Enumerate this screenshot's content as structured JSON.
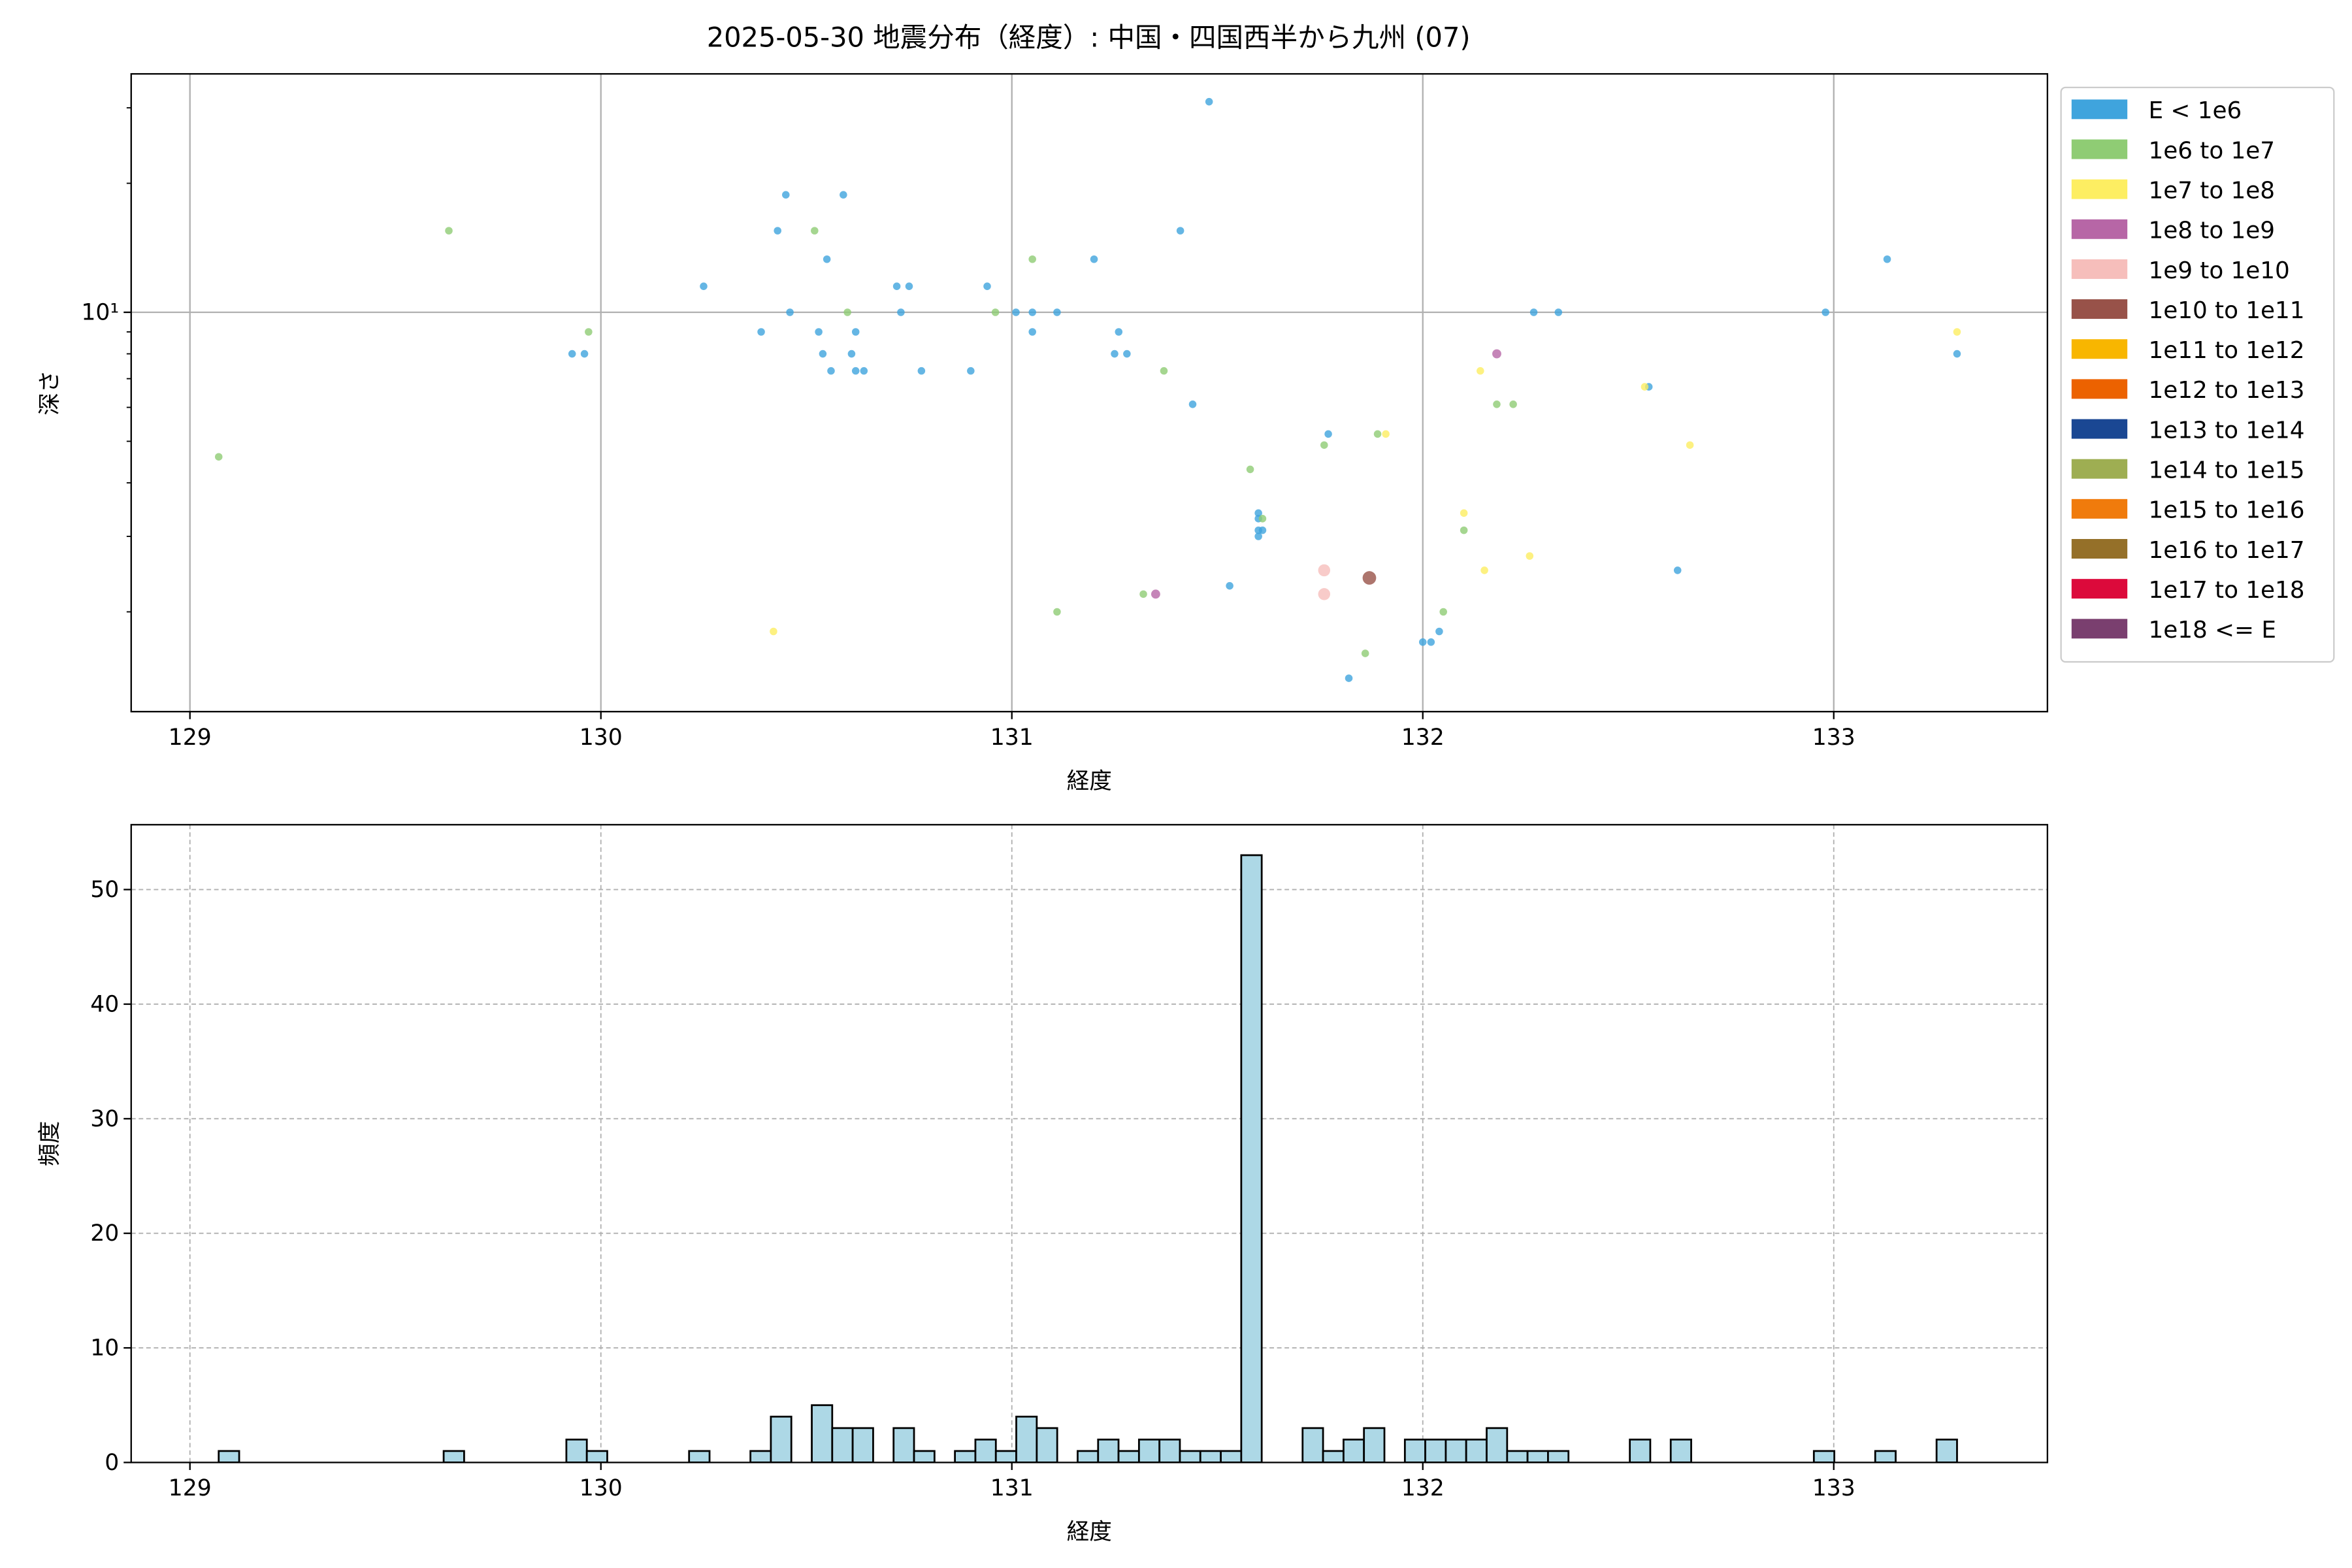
{
  "chart_data": [
    {
      "type": "scatter",
      "title": "2025-05-30 地震分布（経度）: 中国・四国西半から九州 (07)",
      "xlabel": "経度",
      "ylabel": "深さ",
      "xlim": [
        128.857,
        133.52
      ],
      "xticks": [
        129,
        130,
        131,
        132,
        133
      ],
      "ylim": [
        1.17,
        36
      ],
      "log_y": true,
      "yticks": [
        {
          "value": 10,
          "label": "10¹"
        }
      ],
      "yminorticks": [
        2,
        3,
        4,
        5,
        6,
        7,
        8,
        9,
        20,
        30
      ],
      "grid": true,
      "legend": "outside-right",
      "series": [
        {
          "name": "E < 1e6",
          "color": "#3fa4dd",
          "size": 2.5,
          "x": [
            131.48,
            130.45,
            130.59,
            130.43,
            131.41,
            130.55,
            131.2,
            133.13,
            130.25,
            130.72,
            130.75,
            130.94,
            130.46,
            130.73,
            131.01,
            131.05,
            131.11,
            132.27,
            132.33,
            132.98,
            130.39,
            130.53,
            130.62,
            131.05,
            131.26,
            129.93,
            129.96,
            130.54,
            130.61,
            131.25,
            131.28,
            133.3,
            130.56,
            130.62,
            130.64,
            130.78,
            130.9,
            132.55,
            131.44,
            131.77,
            131.6,
            131.6,
            131.61,
            131.6,
            131.6,
            131.53,
            132.62,
            132.04,
            132.0,
            132.02,
            131.82
          ],
          "values": [
            31,
            18.8,
            18.8,
            15.5,
            15.5,
            13.3,
            13.3,
            13.3,
            11.5,
            11.5,
            11.5,
            11.5,
            10,
            10,
            10,
            10,
            10,
            10,
            10,
            10,
            9,
            9,
            9,
            9,
            9,
            8,
            8,
            8,
            8,
            8,
            8,
            8,
            7.3,
            7.3,
            7.3,
            7.3,
            7.3,
            6.7,
            6.1,
            5.2,
            3.4,
            3.3,
            3.1,
            3.1,
            3.0,
            2.3,
            2.5,
            1.8,
            1.7,
            1.7,
            1.4
          ]
        },
        {
          "name": "1e6 to 1e7",
          "color": "#8fcc74",
          "size": 2.5,
          "x": [
            129.63,
            130.52,
            131.05,
            130.6,
            130.96,
            129.97,
            131.37,
            132.18,
            132.22,
            131.89,
            131.76,
            131.58,
            131.61,
            132.1,
            131.32,
            131.11,
            132.05,
            131.86,
            129.07
          ],
          "values": [
            15.5,
            15.5,
            13.3,
            10,
            10,
            9,
            7.3,
            6.1,
            6.1,
            5.2,
            4.9,
            4.3,
            3.3,
            3.1,
            2.2,
            2.0,
            2.0,
            1.6,
            4.6
          ]
        },
        {
          "name": "1e7 to 1e8",
          "color": "#fdee62",
          "size": 2.5,
          "x": [
            133.3,
            132.14,
            132.54,
            131.91,
            132.65,
            132.1,
            132.15,
            132.26,
            130.42
          ],
          "values": [
            9,
            7.3,
            6.7,
            5.2,
            4.9,
            3.4,
            2.5,
            2.7,
            1.8
          ]
        },
        {
          "name": "1e8 to 1e9",
          "color": "#b766a6",
          "size": 3,
          "x": [
            132.18,
            131.35
          ],
          "values": [
            8,
            2.2
          ]
        },
        {
          "name": "1e9 to 1e10",
          "color": "#f6bebb",
          "size": 4,
          "x": [
            131.76,
            131.76
          ],
          "values": [
            2.5,
            2.2
          ]
        },
        {
          "name": "1e10 to 1e11",
          "color": "#985249",
          "size": 4.5,
          "x": [
            131.87
          ],
          "values": [
            2.4
          ]
        },
        {
          "name": "1e11 to 1e12",
          "color": "#f8b600",
          "x": [],
          "values": []
        },
        {
          "name": "1e12 to 1e13",
          "color": "#ec6200",
          "x": [],
          "values": []
        },
        {
          "name": "1e13 to 1e14",
          "color": "#1a4793",
          "x": [],
          "values": []
        },
        {
          "name": "1e14 to 1e15",
          "color": "#9eae52",
          "x": [],
          "values": []
        },
        {
          "name": "1e15 to 1e16",
          "color": "#f07b0c",
          "x": [],
          "values": []
        },
        {
          "name": "1e16 to 1e17",
          "color": "#957029",
          "x": [],
          "values": []
        },
        {
          "name": "1e17 to 1e18",
          "color": "#dc0a3b",
          "x": [],
          "values": []
        },
        {
          "name": "1e18 <= E",
          "color": "#7a3f6f",
          "x": [],
          "values": []
        }
      ]
    },
    {
      "type": "histogram",
      "xlabel": "経度",
      "ylabel": "頻度",
      "xlim": [
        128.857,
        133.52
      ],
      "xticks": [
        129,
        130,
        131,
        132,
        133
      ],
      "ylim": [
        0,
        55.66
      ],
      "yticks": [
        0,
        10,
        20,
        30,
        40,
        50
      ],
      "grid": "dashed",
      "color": "#add8e6",
      "edgecolor": "#000000",
      "bins": [
        129.07,
        129.1198,
        129.1695,
        129.2193,
        129.2691,
        129.3188,
        129.3686,
        129.4184,
        129.4681,
        129.5179,
        129.5676,
        129.6174,
        129.6672,
        129.7169,
        129.7667,
        129.8165,
        129.8662,
        129.916,
        129.9658,
        130.0155,
        130.0653,
        130.1151,
        130.1648,
        130.2146,
        130.2644,
        130.3141,
        130.3639,
        130.4136,
        130.4634,
        130.5132,
        130.5629,
        130.6127,
        130.6625,
        130.7122,
        130.762,
        130.8118,
        130.8615,
        130.9113,
        130.9611,
        131.0108,
        131.0606,
        131.1104,
        131.1601,
        131.2099,
        131.2596,
        131.3094,
        131.3592,
        131.4089,
        131.4587,
        131.5085,
        131.5582,
        131.608,
        131.6578,
        131.7075,
        131.7573,
        131.8071,
        131.8568,
        131.9066,
        131.9564,
        132.0061,
        132.0559,
        132.1056,
        132.1554,
        132.2052,
        132.2549,
        132.3047,
        132.3545,
        132.4042,
        132.454,
        132.5038,
        132.5535,
        132.6033,
        132.6531,
        132.7028,
        132.7526,
        132.8024,
        132.8521,
        132.9019,
        132.9516,
        133.0014,
        133.0512,
        133.1009,
        133.1507,
        133.2005,
        133.2502,
        133.3
      ],
      "values": [
        1,
        0,
        0,
        0,
        0,
        0,
        0,
        0,
        0,
        0,
        0,
        1,
        0,
        0,
        0,
        0,
        0,
        2,
        1,
        0,
        0,
        0,
        0,
        1,
        0,
        0,
        1,
        4,
        0,
        5,
        3,
        3,
        0,
        3,
        1,
        0,
        1,
        2,
        1,
        4,
        3,
        0,
        1,
        2,
        1,
        2,
        2,
        1,
        1,
        1,
        53,
        0,
        0,
        3,
        1,
        2,
        3,
        0,
        2,
        2,
        2,
        2,
        3,
        1,
        1,
        1,
        0,
        0,
        0,
        2,
        0,
        2,
        0,
        0,
        0,
        0,
        0,
        0,
        1,
        0,
        0,
        1,
        0,
        0,
        2
      ]
    }
  ]
}
